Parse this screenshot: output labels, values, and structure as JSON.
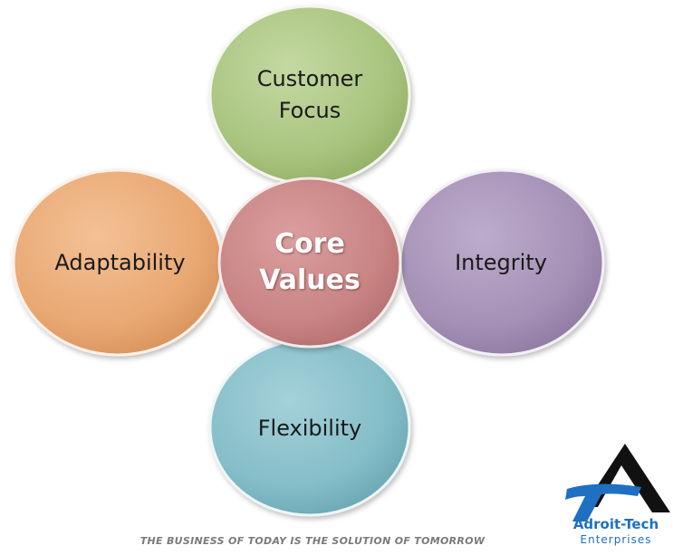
{
  "diagram": {
    "center": {
      "label_line1": "Core",
      "label_line2": "Values",
      "color": "#C77E7E"
    },
    "nodes": [
      {
        "id": "top",
        "label_line1": "Customer",
        "label_line2": "Focus",
        "color": "#A9C47F"
      },
      {
        "id": "left",
        "label_line1": "Adaptability",
        "label_line2": "",
        "color": "#E9A873"
      },
      {
        "id": "right",
        "label_line1": "Integrity",
        "label_line2": "",
        "color": "#A590B6"
      },
      {
        "id": "bottom",
        "label_line1": "Flexibility",
        "label_line2": "",
        "color": "#84BDC8"
      }
    ]
  },
  "footer": {
    "tagline": "THE BUSINESS OF TODAY IS THE SOLUTION OF TOMORROW"
  },
  "logo": {
    "name": "Adroit-Tech",
    "subtitle": "Enterprises",
    "primary_color": "#1F6FC2",
    "dark_color": "#111111"
  }
}
